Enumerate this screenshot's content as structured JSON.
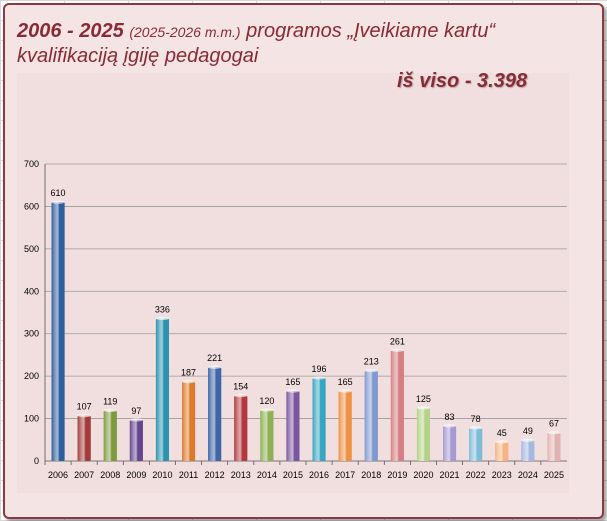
{
  "header": {
    "title_years": "2006 - 2025",
    "title_paren": "(2025-2026 m.m.)",
    "title_rest": "programos „Įveikiame kartu“",
    "title_line2": "kvalifikaciją įgiję pedagogai",
    "total": "iš viso - 3.398"
  },
  "chart_data": {
    "type": "bar",
    "title": "2006 - 2025 (2025-2026 m.m.) programos „Įveikiame kartu“ kvalifikaciją įgiję pedagogai",
    "xlabel": "",
    "ylabel": "",
    "ylim": [
      0,
      700
    ],
    "yticks": [
      0,
      100,
      200,
      300,
      400,
      500,
      600,
      700
    ],
    "grid": true,
    "categories": [
      "2006",
      "2007",
      "2008",
      "2009",
      "2010",
      "2011",
      "2012",
      "2013",
      "2014",
      "2015",
      "2016",
      "2017",
      "2018",
      "2019",
      "2020",
      "2021",
      "2022",
      "2023",
      "2024",
      "2025"
    ],
    "values": [
      610,
      107,
      119,
      97,
      336,
      187,
      221,
      154,
      120,
      165,
      196,
      165,
      213,
      261,
      125,
      83,
      78,
      45,
      49,
      67
    ],
    "colors": [
      "#2f5e9c",
      "#a33a3a",
      "#7d9a3e",
      "#65458f",
      "#2b93ad",
      "#dc7a2a",
      "#3e66a8",
      "#b23a3f",
      "#8db052",
      "#7a569f",
      "#36a5c1",
      "#ef9143",
      "#7f99cf",
      "#d67e83",
      "#b5d289",
      "#a79ad2",
      "#7fbcd9",
      "#f5b482",
      "#a4b8e0",
      "#e1b2b0"
    ]
  }
}
